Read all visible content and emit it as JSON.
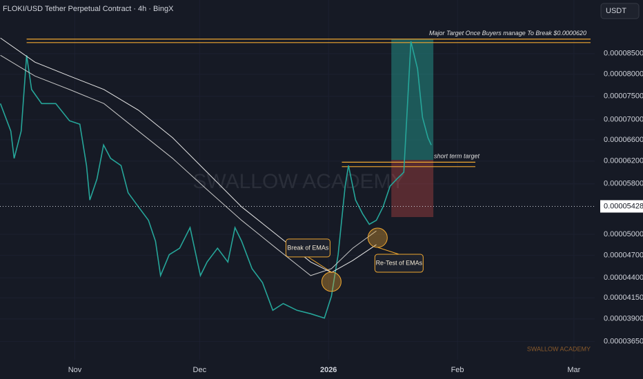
{
  "chart_data": {
    "type": "line",
    "title": "FLOKI/USD Tether Perpetual Contract · 4h · BingX",
    "currency": "USDT",
    "watermark": "SWALLOW ACADEMY",
    "footer": "SWALLOW ACADEMY",
    "yscale": "log",
    "grid": true,
    "xlim": [
      -18,
      125
    ],
    "ylim": [
      3.46e-05,
      9.95e-05
    ],
    "xticks": [
      {
        "value": 0,
        "label": "Nov"
      },
      {
        "value": 30,
        "label": "Dec"
      },
      {
        "value": 61,
        "label": "2026"
      },
      {
        "value": 92,
        "label": "Feb"
      },
      {
        "value": 120,
        "label": "Mar"
      }
    ],
    "yticks": [
      {
        "value": 8.5e-05,
        "label": "0.00008500"
      },
      {
        "value": 8e-05,
        "label": "0.00008000"
      },
      {
        "value": 7.5e-05,
        "label": "0.00007500"
      },
      {
        "value": 7e-05,
        "label": "0.00007000"
      },
      {
        "value": 6.6e-05,
        "label": "0.00006600"
      },
      {
        "value": 6.2e-05,
        "label": "0.00006200"
      },
      {
        "value": 5.8e-05,
        "label": "0.00005800"
      },
      {
        "value": 5e-05,
        "label": "0.00005000"
      },
      {
        "value": 4.7e-05,
        "label": "0.00004700"
      },
      {
        "value": 4.4e-05,
        "label": "0.00004400"
      },
      {
        "value": 4.15e-05,
        "label": "0.00004150"
      },
      {
        "value": 3.9e-05,
        "label": "0.00003900"
      },
      {
        "value": 3.65e-05,
        "label": "0.00003650"
      }
    ],
    "last_price": 5.428e-05,
    "series": [
      {
        "color": "#26a69a",
        "x": [
          -17.9,
          -15.4,
          -14.6,
          -12.9,
          -11.6,
          -10.4,
          -8.0,
          -4.6,
          -1.3,
          1.2,
          2.8,
          3.6,
          5.3,
          6.9,
          8.6,
          11.1,
          12.8,
          15.3,
          17.7,
          19.4,
          20.6,
          22.7,
          25.2,
          27.7,
          30.2,
          31.8,
          34.3,
          36.8,
          38.5,
          40.1,
          42.6,
          45.1,
          47.6,
          50.1,
          53.4,
          56.7,
          60.0,
          61.7,
          63.3,
          65.0,
          65.8,
          67.5,
          69.2,
          70.8,
          72.5,
          74.1,
          75.8,
          77.4,
          79.1,
          80.8,
          82.4,
          83.6,
          84.9,
          85.7
        ],
        "values": [
          7.34e-05,
          6.77e-05,
          6.25e-05,
          6.77e-05,
          8.46e-05,
          7.65e-05,
          7.34e-05,
          7.34e-05,
          6.98e-05,
          6.91e-05,
          6.12e-05,
          5.53e-05,
          5.88e-05,
          6.5e-05,
          6.25e-05,
          6.12e-05,
          5.65e-05,
          5.42e-05,
          5.21e-05,
          4.9e-05,
          4.43e-05,
          4.71e-05,
          4.8e-05,
          5.1e-05,
          4.43e-05,
          4.61e-05,
          4.8e-05,
          4.61e-05,
          5.1e-05,
          4.9e-05,
          4.52e-05,
          4.34e-05,
          4e-05,
          4.08e-05,
          4e-05,
          3.96e-05,
          3.91e-05,
          4.17e-05,
          4.71e-05,
          5.76e-05,
          6.12e-05,
          5.53e-05,
          5.31e-05,
          5.15e-05,
          5.21e-05,
          5.42e-05,
          5.76e-05,
          5.88e-05,
          6e-05,
          8.81e-05,
          8.13e-05,
          7.05e-05,
          6.64e-05,
          6.5e-05
        ]
      },
      {
        "color": "#c8c8c8",
        "x": [
          -17.9,
          -9.6,
          -1.3,
          7.0,
          15.3,
          23.5,
          31.8,
          40.1,
          48.4,
          56.7,
          61.7,
          66.8,
          72.5
        ],
        "values": [
          8.46e-05,
          7.96e-05,
          7.65e-05,
          7.34e-05,
          6.77e-05,
          6.25e-05,
          5.7e-05,
          5.21e-05,
          4.8e-05,
          4.43e-05,
          4.52e-05,
          4.8e-05,
          5.05e-05
        ]
      },
      {
        "color": "#e8e8e8",
        "x": [
          -17.9,
          -9.6,
          -1.3,
          7.0,
          15.3,
          23.5,
          31.8,
          40.1,
          48.4,
          56.7,
          61.7,
          66.8,
          72.5
        ],
        "values": [
          8.9e-05,
          8.29e-05,
          7.96e-05,
          7.65e-05,
          7.2e-05,
          6.64e-05,
          6e-05,
          5.42e-05,
          5e-05,
          4.61e-05,
          4.47e-05,
          4.63e-05,
          4.85e-05
        ]
      }
    ],
    "levels": [
      {
        "values": [
          8.87e-05,
          8.78e-05
        ],
        "x": [
          -11.6,
          124
        ],
        "color": "#f0a830",
        "text": "Major Target Once Buyers manage To Break $0.0000620"
      },
      {
        "values": [
          6.18e-05,
          6.1e-05
        ],
        "x": [
          64.2,
          96.3
        ],
        "color": "#f0a830",
        "text": "short term target"
      }
    ],
    "position": {
      "x": [
        76.1,
        86.2
      ],
      "target": 8.87e-05,
      "entry": 6.22e-05,
      "stop": 5.26e-05
    },
    "annotations": [
      {
        "text": "Break of EMAs",
        "x": 61.7,
        "value": 4.35e-05
      },
      {
        "text": "Re-Test of EMAs",
        "x": 72.8,
        "value": 4.95e-05
      }
    ]
  }
}
